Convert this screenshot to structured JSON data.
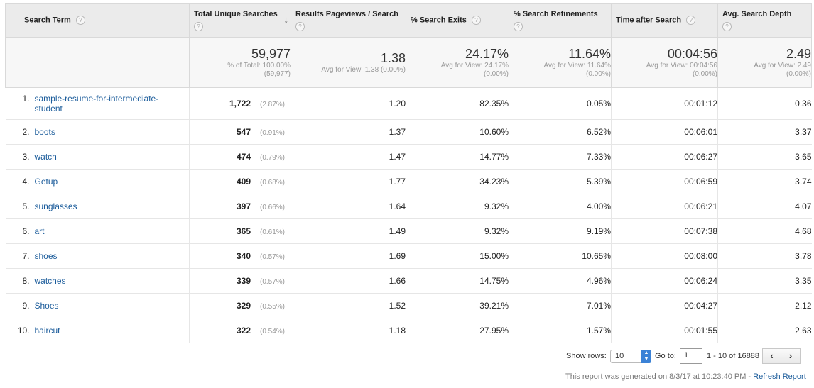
{
  "columns": {
    "search_term": "Search Term",
    "unique_searches": "Total Unique Searches",
    "results_pageviews": "Results Pageviews / Search",
    "search_exits": "% Search Exits",
    "search_refinements": "% Search Refinements",
    "time_after_search": "Time after Search",
    "search_depth": "Avg. Search Depth"
  },
  "help_glyph": "?",
  "sort_glyph": "↓",
  "totals": {
    "unique_searches": {
      "value": "59,977",
      "line1": "% of Total: 100.00%",
      "line2": "(59,977)"
    },
    "results_pageviews": {
      "value": "1.38",
      "line1": "Avg for View: 1.38 (0.00%)",
      "line2": ""
    },
    "search_exits": {
      "value": "24.17%",
      "line1": "Avg for View: 24.17%",
      "line2": "(0.00%)"
    },
    "search_refinements": {
      "value": "11.64%",
      "line1": "Avg for View: 11.64%",
      "line2": "(0.00%)"
    },
    "time_after_search": {
      "value": "00:04:56",
      "line1": "Avg for View: 00:04:56",
      "line2": "(0.00%)"
    },
    "search_depth": {
      "value": "2.49",
      "line1": "Avg for View: 2.49",
      "line2": "(0.00%)"
    }
  },
  "rows": [
    {
      "index": "1.",
      "term": "sample-resume-for-intermediate-student",
      "unique": "1,722",
      "pct": "(2.87%)",
      "rps": "1.20",
      "exits": "82.35%",
      "refinements": "0.05%",
      "time": "00:01:12",
      "depth": "0.36"
    },
    {
      "index": "2.",
      "term": "boots",
      "unique": "547",
      "pct": "(0.91%)",
      "rps": "1.37",
      "exits": "10.60%",
      "refinements": "6.52%",
      "time": "00:06:01",
      "depth": "3.37"
    },
    {
      "index": "3.",
      "term": "watch",
      "unique": "474",
      "pct": "(0.79%)",
      "rps": "1.47",
      "exits": "14.77%",
      "refinements": "7.33%",
      "time": "00:06:27",
      "depth": "3.65"
    },
    {
      "index": "4.",
      "term": "Getup",
      "unique": "409",
      "pct": "(0.68%)",
      "rps": "1.77",
      "exits": "34.23%",
      "refinements": "5.39%",
      "time": "00:06:59",
      "depth": "3.74"
    },
    {
      "index": "5.",
      "term": "sunglasses",
      "unique": "397",
      "pct": "(0.66%)",
      "rps": "1.64",
      "exits": "9.32%",
      "refinements": "4.00%",
      "time": "00:06:21",
      "depth": "4.07"
    },
    {
      "index": "6.",
      "term": "art",
      "unique": "365",
      "pct": "(0.61%)",
      "rps": "1.49",
      "exits": "9.32%",
      "refinements": "9.19%",
      "time": "00:07:38",
      "depth": "4.68"
    },
    {
      "index": "7.",
      "term": "shoes",
      "unique": "340",
      "pct": "(0.57%)",
      "rps": "1.69",
      "exits": "15.00%",
      "refinements": "10.65%",
      "time": "00:08:00",
      "depth": "3.78"
    },
    {
      "index": "8.",
      "term": "watches",
      "unique": "339",
      "pct": "(0.57%)",
      "rps": "1.66",
      "exits": "14.75%",
      "refinements": "4.96%",
      "time": "00:06:24",
      "depth": "3.35"
    },
    {
      "index": "9.",
      "term": "Shoes",
      "unique": "329",
      "pct": "(0.55%)",
      "rps": "1.52",
      "exits": "39.21%",
      "refinements": "7.01%",
      "time": "00:04:27",
      "depth": "2.12"
    },
    {
      "index": "10.",
      "term": "haircut",
      "unique": "322",
      "pct": "(0.54%)",
      "rps": "1.18",
      "exits": "27.95%",
      "refinements": "1.57%",
      "time": "00:01:55",
      "depth": "2.63"
    }
  ],
  "footer": {
    "show_rows_label": "Show rows:",
    "show_rows_value": "10",
    "goto_label": "Go to:",
    "goto_value": "1",
    "range_text": "1 - 10 of 16888",
    "prev_glyph": "‹",
    "next_glyph": "›",
    "generated_text": "This report was generated on 8/3/17 at 10:23:40 PM - ",
    "refresh_label": "Refresh Report"
  }
}
